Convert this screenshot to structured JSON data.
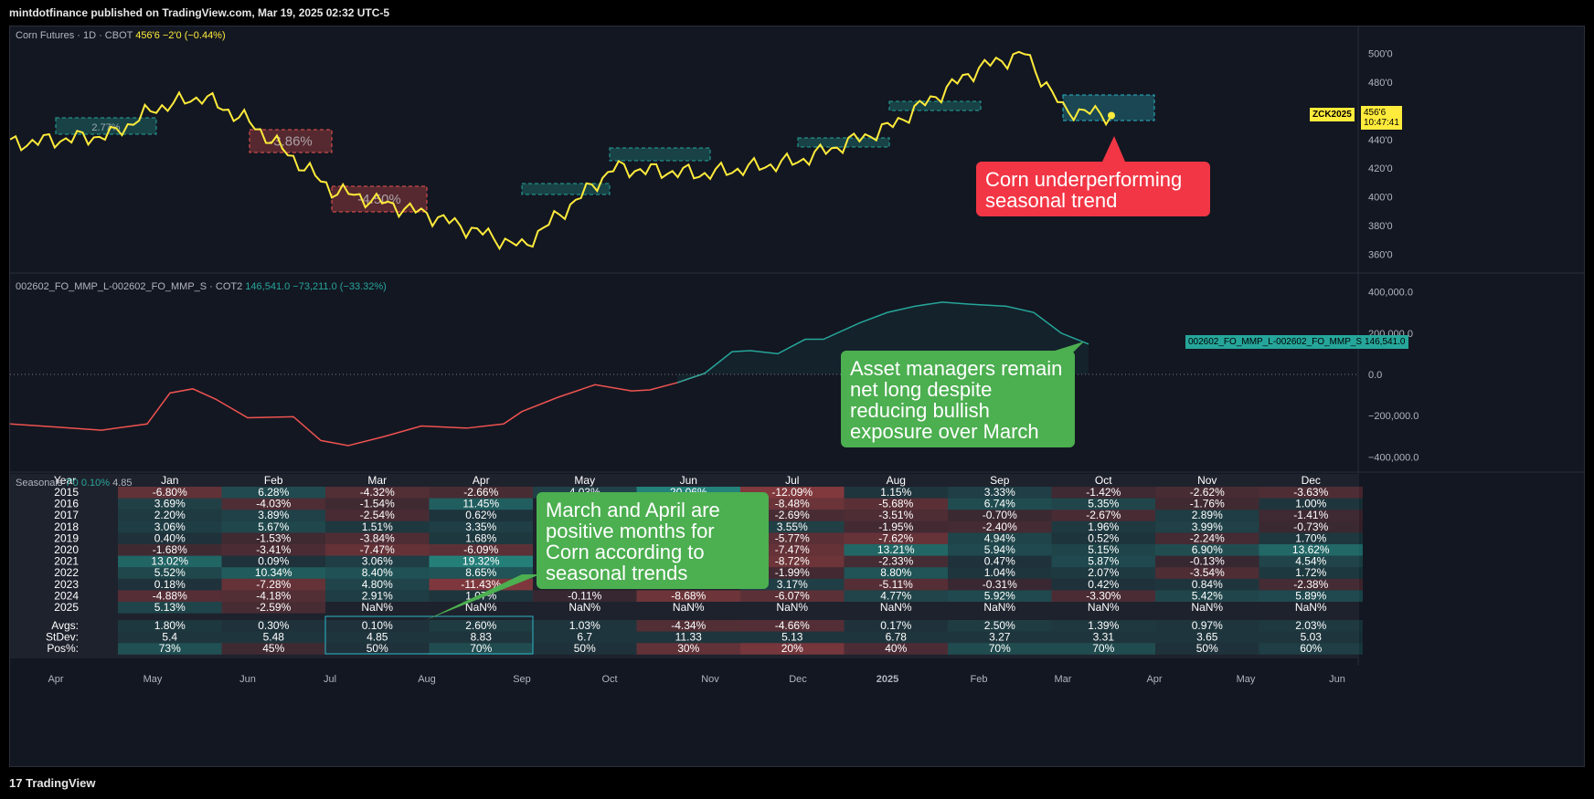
{
  "header": {
    "publisher_text": "mintdotfinance published on TradingView.com, Mar 19, 2025 02:32 UTC-5"
  },
  "footer": {
    "brand": "TradingView"
  },
  "price_pane": {
    "symbol_label": "Corn Futures · 1D · CBOT",
    "last_value": "456'6",
    "change": "−2'0 (−0.44%)",
    "ticker_tag": "ZCK2025",
    "price_tag_value": "456'6",
    "price_tag_time": "10:47:41",
    "y_ticks": [
      "500'0",
      "480'0",
      "440'0",
      "420'0",
      "400'0",
      "380'0",
      "360'0"
    ],
    "season_boxes": [
      {
        "label": "2.77%"
      },
      {
        "label": "-3.86%"
      },
      {
        "label": "-4.50%"
      }
    ]
  },
  "cot_pane": {
    "label": "002602_FO_MMP_L-002602_FO_MMP_S · COT2",
    "value": "146,541.0",
    "change": "−73,211.0 (−33.32%)",
    "tag_name": "002602_FO_MMP_L-002602_FO_MMP_S",
    "tag_value": "146,541.0",
    "y_ticks": [
      "400,000.0",
      "200,000.0",
      "0.0",
      "−200,000.0",
      "−400,000.0"
    ]
  },
  "seasonals": {
    "title": "Seasonals",
    "title_extra": [
      "7'0",
      "0.10%",
      "4.85"
    ],
    "header_year": "Year",
    "months": [
      "Jan",
      "Feb",
      "Mar",
      "Apr",
      "May",
      "Jun",
      "Jul",
      "Aug",
      "Sep",
      "Oct",
      "Nov",
      "Dec"
    ],
    "rows": [
      {
        "year": "2015",
        "v": [
          "-6.80%",
          "6.28%",
          "-4.32%",
          "-2.66%",
          "4.03%",
          "20.06%",
          "-12.09%",
          "1.15%",
          "3.33%",
          "-1.42%",
          "-2.62%",
          "-3.63%"
        ]
      },
      {
        "year": "2016",
        "v": [
          "3.69%",
          "-4.03%",
          "-1.54%",
          "11.45%",
          "",
          "",
          "-8.48%",
          "-5.68%",
          "6.74%",
          "5.35%",
          "-1.76%",
          "1.00%"
        ]
      },
      {
        "year": "2017",
        "v": [
          "2.20%",
          "3.89%",
          "-2.54%",
          "0.62%",
          "",
          "",
          "-2.69%",
          "-3.51%",
          "-0.70%",
          "-2.67%",
          "2.89%",
          "-1.41%"
        ]
      },
      {
        "year": "2018",
        "v": [
          "3.06%",
          "5.67%",
          "1.51%",
          "3.35%",
          "",
          "",
          "3.55%",
          "-1.95%",
          "-2.40%",
          "1.96%",
          "3.99%",
          "-0.73%"
        ]
      },
      {
        "year": "2019",
        "v": [
          "0.40%",
          "-1.53%",
          "-3.84%",
          "1.68%",
          "",
          "",
          "-5.77%",
          "-7.62%",
          "4.94%",
          "0.52%",
          "-2.24%",
          "1.70%"
        ]
      },
      {
        "year": "2020",
        "v": [
          "-1.68%",
          "-3.41%",
          "-7.47%",
          "-6.09%",
          "",
          "",
          "-7.47%",
          "13.21%",
          "5.94%",
          "5.15%",
          "6.90%",
          "13.62%"
        ]
      },
      {
        "year": "2021",
        "v": [
          "13.02%",
          "0.09%",
          "3.06%",
          "19.32%",
          "",
          "",
          "-8.72%",
          "-2.33%",
          "0.47%",
          "5.87%",
          "-0.13%",
          "4.54%"
        ]
      },
      {
        "year": "2022",
        "v": [
          "5.52%",
          "10.34%",
          "8.40%",
          "8.65%",
          "",
          "",
          "-1.99%",
          "8.80%",
          "1.04%",
          "2.07%",
          "-3.54%",
          "1.72%"
        ]
      },
      {
        "year": "2023",
        "v": [
          "0.18%",
          "-7.28%",
          "4.80%",
          "-11.43%",
          "",
          "",
          "3.17%",
          "-5.11%",
          "-0.31%",
          "0.42%",
          "0.84%",
          "-2.38%"
        ]
      },
      {
        "year": "2024",
        "v": [
          "-4.88%",
          "-4.18%",
          "2.91%",
          "1.07%",
          "-0.11%",
          "-8.68%",
          "-6.07%",
          "4.77%",
          "5.92%",
          "-3.30%",
          "5.42%",
          "5.89%"
        ]
      },
      {
        "year": "2025",
        "v": [
          "5.13%",
          "-2.59%",
          "NaN%",
          "NaN%",
          "NaN%",
          "NaN%",
          "NaN%",
          "NaN%",
          "NaN%",
          "NaN%",
          "NaN%",
          "NaN%"
        ]
      }
    ],
    "stats": [
      {
        "label": "Avgs:",
        "v": [
          "1.80%",
          "0.30%",
          "0.10%",
          "2.60%",
          "1.03%",
          "-4.34%",
          "-4.66%",
          "0.17%",
          "2.50%",
          "1.39%",
          "0.97%",
          "2.03%"
        ]
      },
      {
        "label": "StDev:",
        "v": [
          "5.4",
          "5.48",
          "4.85",
          "8.83",
          "6.7",
          "11.33",
          "5.13",
          "6.78",
          "3.27",
          "3.31",
          "3.65",
          "5.03"
        ]
      },
      {
        "label": "Pos%:",
        "v": [
          "73%",
          "45%",
          "50%",
          "70%",
          "50%",
          "30%",
          "20%",
          "40%",
          "70%",
          "70%",
          "50%",
          "60%"
        ]
      }
    ]
  },
  "x_axis": [
    "Apr",
    "May",
    "Jun",
    "Jul",
    "Aug",
    "Sep",
    "Oct",
    "Nov",
    "Dec",
    "2025",
    "Feb",
    "Mar",
    "Apr",
    "May",
    "Jun"
  ],
  "callouts": {
    "corn": "Corn underperforming seasonal trend",
    "managers": "Asset managers remain net long despite reducing bullish exposure over March",
    "march_april": "March and April are positive months for Corn according to seasonal trends"
  },
  "colors": {
    "price_line": "#ffeb3b",
    "cot_positive": "#26a69a",
    "cot_negative": "#ef5350",
    "callout_red": "#f23645",
    "callout_green": "#4caf50",
    "highlight_box": "#2bb7c8"
  },
  "chart_data": [
    {
      "type": "line",
      "title": "Corn Futures · 1D · CBOT",
      "series": [
        {
          "name": "Corn Futures",
          "x": [
            "Apr",
            "May",
            "Jun",
            "Jul",
            "Aug",
            "Sep",
            "Oct",
            "Nov",
            "Dec",
            "2025",
            "Feb",
            "Mar"
          ],
          "values": [
            437,
            468,
            452,
            405,
            388,
            395,
            420,
            418,
            441,
            466,
            492,
            456.75
          ]
        }
      ],
      "ylim": [
        352,
        508
      ]
    },
    {
      "type": "line",
      "title": "002602_FO_MMP_L-002602_FO_MMP_S · COT2",
      "series": [
        {
          "name": "002602_FO_MMP_L-002602_FO_MMP_S",
          "x": [
            "Apr",
            "May",
            "Jun",
            "Jul",
            "Aug",
            "Sep",
            "Oct",
            "Nov",
            "Dec",
            "2025",
            "Feb",
            "Mar"
          ],
          "values": [
            -250000,
            -100000,
            -210000,
            -340000,
            -270000,
            -180000,
            -20000,
            110000,
            170000,
            280000,
            360000,
            146541
          ]
        }
      ],
      "ylim": [
        -420000,
        420000
      ]
    }
  ]
}
